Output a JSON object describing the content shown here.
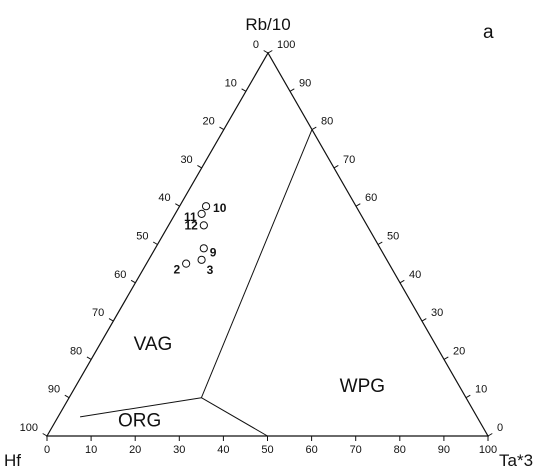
{
  "chart_data": {
    "type": "scatter",
    "subtype": "ternary",
    "panel_label": "a",
    "apices": {
      "top": "Rb/10",
      "left": "Hf",
      "right": "Ta*3"
    },
    "ticks": [
      "0",
      "10",
      "20",
      "30",
      "40",
      "50",
      "60",
      "70",
      "80",
      "90",
      "100"
    ],
    "field_labels": [
      {
        "name": "VAG",
        "hf": 64,
        "ta": 12,
        "rb": 24
      },
      {
        "name": "ORG",
        "hf": 77,
        "ta": 19,
        "rb": 4
      },
      {
        "name": "WPG",
        "hf": 22,
        "ta": 65,
        "rb": 13
      }
    ],
    "boundaries": [
      [
        {
          "hf": 0,
          "ta": 20,
          "rb": 80
        },
        {
          "hf": 60,
          "ta": 30,
          "rb": 10
        }
      ],
      [
        {
          "hf": 90,
          "ta": 5,
          "rb": 5
        },
        {
          "hf": 60,
          "ta": 30,
          "rb": 10
        }
      ],
      [
        {
          "hf": 60,
          "ta": 30,
          "rb": 10
        },
        {
          "hf": 50,
          "ta": 50,
          "rb": 0
        }
      ]
    ],
    "points": [
      {
        "label": "10",
        "hf": 34,
        "ta": 6,
        "rb": 60
      },
      {
        "label": "11",
        "hf": 36,
        "ta": 6,
        "rb": 58
      },
      {
        "label": "12",
        "hf": 37,
        "ta": 8,
        "rb": 55
      },
      {
        "label": "9",
        "hf": 40,
        "ta": 11,
        "rb": 49
      },
      {
        "label": "3",
        "hf": 42,
        "ta": 12,
        "rb": 46
      },
      {
        "label": "2",
        "hf": 46,
        "ta": 9,
        "rb": 45
      }
    ]
  }
}
